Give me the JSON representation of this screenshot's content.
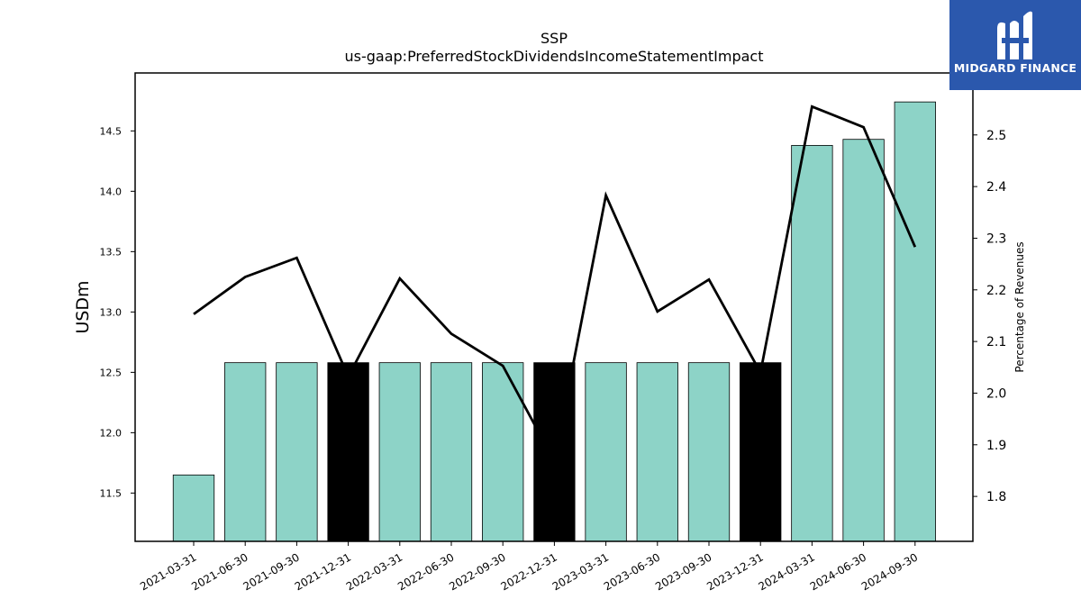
{
  "chart_data": {
    "type": "bar",
    "title": "SSP",
    "subtitle": "us-gaap:PreferredStockDividendsIncomeStatementImpact",
    "ylabel": "USDm",
    "y2label": "Percentage of Revenues",
    "categories": [
      "2021-03-31",
      "2021-06-30",
      "2021-09-30",
      "2021-12-31",
      "2022-03-31",
      "2022-06-30",
      "2022-09-30",
      "2022-12-31",
      "2023-03-31",
      "2023-06-30",
      "2023-09-30",
      "2023-12-31",
      "2024-03-31",
      "2024-06-30",
      "2024-09-30"
    ],
    "series": [
      {
        "values": [
          11.65,
          12.58,
          12.58,
          12.58,
          12.58,
          12.58,
          12.58,
          12.58,
          12.58,
          12.58,
          12.58,
          12.58,
          14.38,
          14.43,
          14.74
        ],
        "axis": "left",
        "colors": [
          "#8dd3c7",
          "#8dd3c7",
          "#8dd3c7",
          "#000000",
          "#8dd3c7",
          "#8dd3c7",
          "#8dd3c7",
          "#000000",
          "#8dd3c7",
          "#8dd3c7",
          "#8dd3c7",
          "#000000",
          "#8dd3c7",
          "#8dd3c7",
          "#8dd3c7"
        ]
      },
      {
        "type": "line",
        "axis": "right",
        "color": "#000000",
        "values": [
          2.153,
          2.225,
          2.262,
          2.032,
          2.222,
          2.115,
          2.053,
          1.868,
          2.383,
          2.158,
          2.22,
          2.04,
          2.555,
          2.515,
          2.283
        ]
      }
    ],
    "ylim": [
      11.1,
      14.98
    ],
    "y2lim": [
      1.713,
      2.62
    ],
    "yticks": [
      "11.5",
      "12.0",
      "12.5",
      "13.0",
      "13.5",
      "14.0",
      "14.5"
    ],
    "y2ticks": [
      "1.8",
      "1.9",
      "2.0",
      "2.1",
      "2.2",
      "2.3",
      "2.4",
      "2.5"
    ],
    "grid": false,
    "legend": "none"
  },
  "logo": {
    "text": "MIDGARD FINANCE",
    "background": "#2b58ad"
  }
}
